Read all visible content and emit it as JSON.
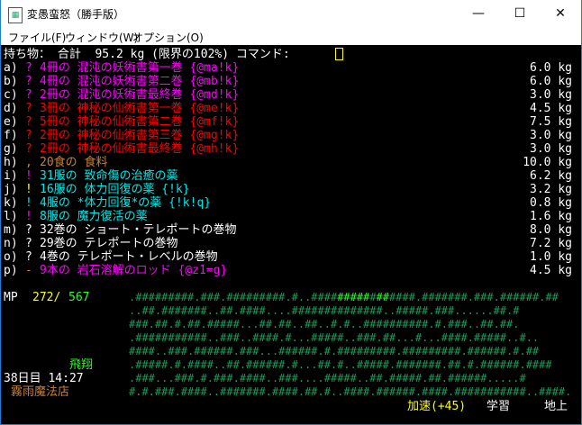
{
  "window": {
    "title": "変愚蛮怒（勝手版）",
    "minimize": "—",
    "maximize": "☐",
    "close": "✕"
  },
  "menu": [
    "ファイル(F)",
    "ウィンドウ(W)",
    "オプション(O)"
  ],
  "header": "持ち物： 合計  95.2 kg (限界の102%) コマンド:",
  "inventory": [
    {
      "key": "a)",
      "sym": "?",
      "text": "4冊の 混沌の妖術書第一巻 {@ma!k}",
      "weight": "6.0 kg",
      "color": "#ff00ff",
      "symcolor": "#ff00ff"
    },
    {
      "key": "b)",
      "sym": "?",
      "text": "4冊の 混沌の妖術書第二巻 {@mb!k}",
      "weight": "6.0 kg",
      "color": "#ff00ff",
      "symcolor": "#ff00ff"
    },
    {
      "key": "c)",
      "sym": "?",
      "text": "2冊の 混沌の妖術書最終巻 {@md!k}",
      "weight": "3.0 kg",
      "color": "#ff00ff",
      "symcolor": "#ff00ff"
    },
    {
      "key": "d)",
      "sym": "?",
      "text": "3冊の 神秘の仙術書第一巻 {@me!k}",
      "weight": "4.5 kg",
      "color": "#ff0000",
      "symcolor": "#ff0000"
    },
    {
      "key": "e)",
      "sym": "?",
      "text": "5冊の 神秘の仙術書第二巻 {@mf!k}",
      "weight": "7.5 kg",
      "color": "#ff0000",
      "symcolor": "#ff0000"
    },
    {
      "key": "f)",
      "sym": "?",
      "text": "2冊の 神秘の仙術書第三巻 {@mg!k}",
      "weight": "3.0 kg",
      "color": "#ff0000",
      "symcolor": "#ff0000"
    },
    {
      "key": "g)",
      "sym": "?",
      "text": "2冊の 神秘の仙術書最終巻 {@mh!k}",
      "weight": "3.0 kg",
      "color": "#ff0000",
      "symcolor": "#ff0000"
    },
    {
      "key": "h)",
      "sym": ",",
      "text": "20食の 食料",
      "weight": "10.0 kg",
      "color": "#c8803c",
      "symcolor": "#c8803c"
    },
    {
      "key": "i)",
      "sym": "!",
      "text": "31服の 致命傷の治癒の薬",
      "weight": "6.2 kg",
      "color": "#00e8e8",
      "symcolor": "#ff00ff"
    },
    {
      "key": "j)",
      "sym": "!",
      "text": "16服の 体力回復の薬 {!k}",
      "weight": "3.2 kg",
      "color": "#00e8e8",
      "symcolor": "#ffff00"
    },
    {
      "key": "k)",
      "sym": "!",
      "text": "4服の *体力回復*の薬 {!k!q}",
      "weight": "0.8 kg",
      "color": "#00e8e8",
      "symcolor": "#00e8e8"
    },
    {
      "key": "l)",
      "sym": "!",
      "text": "8服の 魔力復活の薬",
      "weight": "1.6 kg",
      "color": "#00e8e8",
      "symcolor": "#ff00ff"
    },
    {
      "key": "m)",
      "sym": "?",
      "text": "32巻の ショート・テレポートの巻物",
      "weight": "8.0 kg",
      "color": "#ffffff",
      "symcolor": "#ffffff"
    },
    {
      "key": "n)",
      "sym": "?",
      "text": "29巻の テレポートの巻物",
      "weight": "7.2 kg",
      "color": "#ffffff",
      "symcolor": "#ffffff"
    },
    {
      "key": "o)",
      "sym": "?",
      "text": "4巻の テレポート・レベルの巻物",
      "weight": "1.0 kg",
      "color": "#ffffff",
      "symcolor": "#ffffff"
    },
    {
      "key": "p)",
      "sym": "-",
      "text": "9本の 岩石溶解のロッド {@z1=g}",
      "weight": "4.5 kg",
      "color": "#ff00ff",
      "symcolor": "#c8803c"
    }
  ],
  "status": {
    "mp_label": "MP",
    "mp_cur": "272",
    "mp_sep": "/",
    "mp_max": "567",
    "flying": "飛翔",
    "date": "38日目 14:27",
    "location": "霧雨魔法店",
    "speed": "加速(+45)",
    "study": "学習",
    "depth": "地上"
  },
  "map": {
    "row1": [
      ".#########.###.#########.#..####",
      "#####",
      "#",
      "##",
      "####.#######.###.######.##"
    ],
    "rows": [
      "..##.#######..##.####....##############..#####.###......##.#",
      "###.##.#.##.#####...##.##..##..#.#..##########.#.###..##.##.",
      ".###########..###..####.#...#####..###.##...#...####.#####..#..",
      "####..###.######.###...######.#.#########.#########.######.#.##",
      ".#####.#.####..##.######.#...##.#..#####.#######.##.#.######.####",
      ".###...###.#.###.####..###....#####..##.#####.##.######.....#",
      "#.#.###.####..#######.####.##.#..####.######.####.###########..####."
    ]
  }
}
